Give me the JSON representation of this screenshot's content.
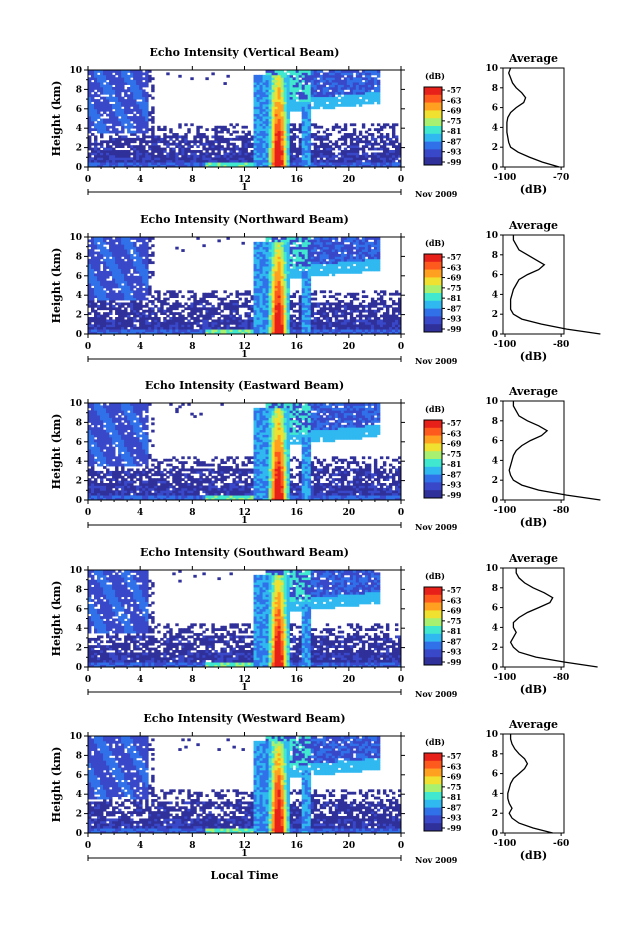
{
  "figure": {
    "xlabel": "Local Time",
    "date_label": "Nov 2009",
    "day_label": "1",
    "colorbar_unit": "(dB)",
    "colorbar_ticks": [
      "-57",
      "-63",
      "-69",
      "-75",
      "-81",
      "-87",
      "-93",
      "-99"
    ],
    "colorbar_colors": [
      "#e8201a",
      "#ff5a1e",
      "#ffa020",
      "#f0e030",
      "#a8f070",
      "#40e8d0",
      "#30b8f0",
      "#3070e8",
      "#3848c8",
      "#30309a"
    ],
    "profile_title": "Average",
    "profile_xlabel": "(dB)"
  },
  "chart_data": [
    {
      "type": "heatmap",
      "title": "Echo Intensity (Vertical Beam)",
      "xlabel": "Local Time",
      "ylabel": "Height (km)",
      "x_ticks": [
        "0",
        "4",
        "8",
        "12",
        "16",
        "20",
        "0"
      ],
      "y_ticks": [
        "0",
        "2",
        "4",
        "6",
        "8",
        "10"
      ],
      "xlim": [
        0,
        24
      ],
      "ylim": [
        0,
        10
      ],
      "colorbar": {
        "label": "(dB)",
        "range": [
          -99,
          -57
        ]
      },
      "profile": {
        "title": "Average",
        "xlabel": "(dB)",
        "x_ticks": [
          "-100",
          "-70"
        ],
        "heights": [
          0,
          0.5,
          1,
          1.5,
          2,
          2.5,
          3,
          3.5,
          4,
          4.5,
          5,
          5.5,
          6,
          6.5,
          7,
          7.5,
          8,
          8.5,
          9,
          9.5,
          10
        ],
        "values": [
          -71,
          -80,
          -87,
          -93,
          -97,
          -98,
          -98.5,
          -99,
          -99,
          -99,
          -98.5,
          -97,
          -94,
          -90,
          -89,
          -91,
          -94,
          -96,
          -97,
          -98,
          -97
        ]
      }
    },
    {
      "type": "heatmap",
      "title": "Echo Intensity (Northward Beam)",
      "xlabel": "Local Time",
      "ylabel": "Height (km)",
      "x_ticks": [
        "0",
        "4",
        "8",
        "12",
        "16",
        "20",
        "0"
      ],
      "y_ticks": [
        "0",
        "2",
        "4",
        "6",
        "8",
        "10"
      ],
      "xlim": [
        0,
        24
      ],
      "ylim": [
        0,
        10
      ],
      "colorbar": {
        "label": "(dB)",
        "range": [
          -99,
          -57
        ]
      },
      "profile": {
        "title": "Average",
        "xlabel": "(dB)",
        "x_ticks": [
          "-100",
          "-80"
        ],
        "heights": [
          0,
          0.5,
          1,
          1.5,
          2,
          2.5,
          3,
          3.5,
          4,
          4.5,
          5,
          5.5,
          6,
          6.5,
          7,
          7.5,
          8,
          8.5,
          9,
          9.5,
          10
        ],
        "values": [
          -66,
          -78,
          -87,
          -94,
          -97,
          -98,
          -98,
          -98,
          -97.5,
          -97,
          -96,
          -95,
          -92,
          -88,
          -86,
          -89,
          -92,
          -95,
          -96,
          -97,
          -97
        ]
      }
    },
    {
      "type": "heatmap",
      "title": "Echo Intensity (Eastward Beam)",
      "xlabel": "Local Time",
      "ylabel": "Height (km)",
      "x_ticks": [
        "0",
        "4",
        "8",
        "12",
        "16",
        "20",
        "0"
      ],
      "y_ticks": [
        "0",
        "2",
        "4",
        "6",
        "8",
        "10"
      ],
      "xlim": [
        0,
        24
      ],
      "ylim": [
        0,
        10
      ],
      "colorbar": {
        "label": "(dB)",
        "range": [
          -99,
          -57
        ]
      },
      "profile": {
        "title": "Average",
        "xlabel": "(dB)",
        "x_ticks": [
          "-100",
          "-80"
        ],
        "heights": [
          0,
          0.5,
          1,
          1.5,
          2,
          2.5,
          3,
          3.5,
          4,
          4.5,
          5,
          5.5,
          6,
          6.5,
          7,
          7.5,
          8,
          8.5,
          9,
          9.5,
          10
        ],
        "values": [
          -66,
          -78,
          -88,
          -94,
          -97,
          -98,
          -98.5,
          -98,
          -97.5,
          -97,
          -96,
          -94,
          -91,
          -87,
          -85,
          -88,
          -92,
          -95,
          -96,
          -97,
          -97
        ]
      }
    },
    {
      "type": "heatmap",
      "title": "Echo Intensity (Southward Beam)",
      "xlabel": "Local Time",
      "ylabel": "Height (km)",
      "x_ticks": [
        "0",
        "4",
        "8",
        "12",
        "16",
        "20",
        "0"
      ],
      "y_ticks": [
        "0",
        "2",
        "4",
        "6",
        "8",
        "10"
      ],
      "xlim": [
        0,
        24
      ],
      "ylim": [
        0,
        10
      ],
      "colorbar": {
        "label": "(dB)",
        "range": [
          -99,
          -57
        ]
      },
      "profile": {
        "title": "Average",
        "xlabel": "(dB)",
        "x_ticks": [
          "-100",
          "-80"
        ],
        "heights": [
          0,
          0.5,
          1,
          1.5,
          2,
          2.5,
          3,
          3.5,
          4,
          4.5,
          5,
          5.5,
          6,
          6.5,
          7,
          7.5,
          8,
          8.5,
          9,
          9.5,
          10
        ],
        "values": [
          -67,
          -79,
          -89,
          -95,
          -97,
          -98,
          -97,
          -96,
          -97,
          -97,
          -95,
          -92,
          -88,
          -84,
          -83,
          -86,
          -90,
          -93,
          -95,
          -96,
          -96
        ]
      }
    },
    {
      "type": "heatmap",
      "title": "Echo Intensity (Westward Beam)",
      "xlabel": "Local Time",
      "ylabel": "Height (km)",
      "x_ticks": [
        "0",
        "4",
        "8",
        "12",
        "16",
        "20",
        "0"
      ],
      "y_ticks": [
        "0",
        "2",
        "4",
        "6",
        "8",
        "10"
      ],
      "xlim": [
        0,
        24
      ],
      "ylim": [
        0,
        10
      ],
      "colorbar": {
        "label": "(dB)",
        "range": [
          -99,
          -57
        ]
      },
      "profile": {
        "title": "Average",
        "xlabel": "(dB)",
        "x_ticks": [
          "-100",
          "-60"
        ],
        "heights": [
          0,
          0.5,
          1,
          1.5,
          2,
          2.5,
          3,
          3.5,
          4,
          4.5,
          5,
          5.5,
          6,
          6.5,
          7,
          7.5,
          8,
          8.5,
          9,
          9.5,
          10
        ],
        "values": [
          -66,
          -80,
          -90,
          -95,
          -97,
          -95,
          -97,
          -98,
          -98,
          -97,
          -96,
          -94,
          -90,
          -86,
          -84,
          -86,
          -90,
          -93,
          -95,
          -96,
          -96
        ]
      }
    }
  ]
}
